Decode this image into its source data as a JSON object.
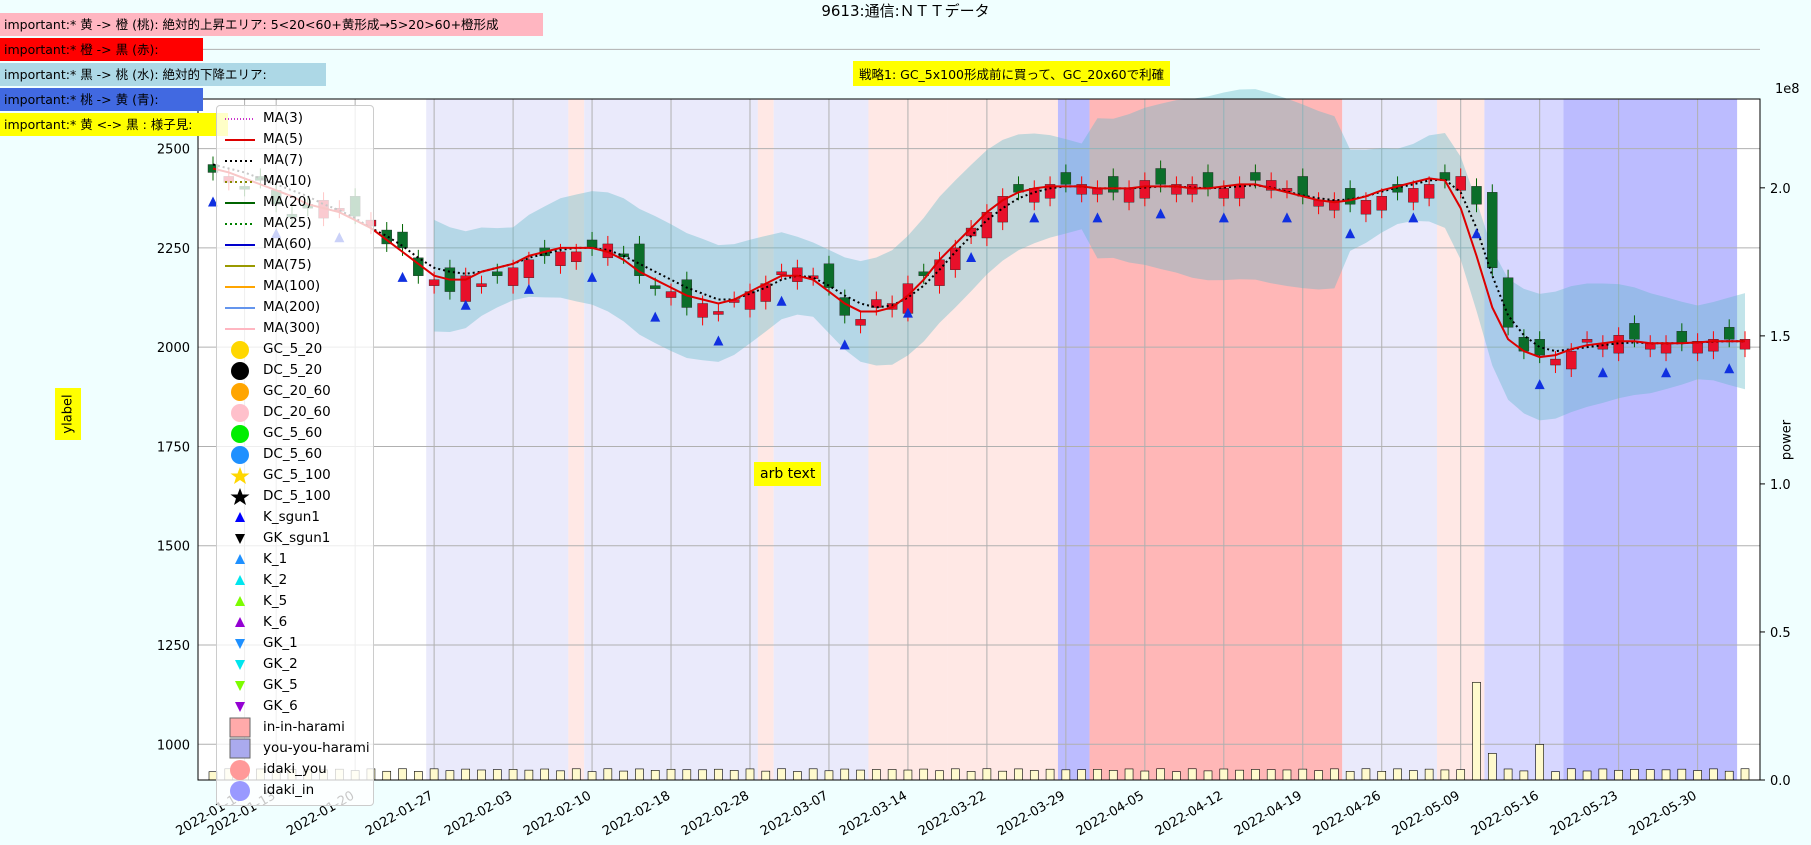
{
  "header": {
    "title": "9613:通信:ＮＴＴデータ",
    "strategy": "戦略1: GC_5x100形成前に買って、GC_20x60で利確",
    "arb_text": "arb text"
  },
  "notes": [
    {
      "text": "important:* 黄 -> 橙 (桃): 絶対的上昇エリア: 5<20<60+黄形成→5>20>60+橙形成",
      "color": "#ffb6c1"
    },
    {
      "text": "important:* 橙 -> 黒 (赤):",
      "color": "#ff0000"
    },
    {
      "text": "important:* 黒 -> 桃 (水): 絶対的下降エリア:",
      "color": "#add8e6"
    },
    {
      "text": "important:* 桃 -> 黄 (青):",
      "color": "#4169e1"
    },
    {
      "text": "important:* 黄 <-> 黒 : 様子見:",
      "color": "#ffff00"
    }
  ],
  "chart_data": {
    "type": "line",
    "title": "9613:通信:ＮＴＴデータ",
    "ylabel": "ylabel",
    "ylabel_right": "power",
    "right_axis_scale_label": "1e8",
    "ylim": [
      910,
      2625
    ],
    "ylim_right": [
      0,
      2.3
    ],
    "grid": true,
    "legend_placement": "upper left",
    "yticks": [
      1000,
      1250,
      1500,
      1750,
      2000,
      2250,
      2500,
      2750
    ],
    "yticks_right": [
      "0.0",
      "0.5",
      "1.0",
      "1.5",
      "2.0"
    ],
    "x_tick_labels": [
      "2022-01-13",
      "2022-01-13",
      "2022-01-20",
      "2022-01-27",
      "2022-02-03",
      "2022-02-10",
      "2022-02-18",
      "2022-02-28",
      "2022-03-07",
      "2022-03-14",
      "2022-03-22",
      "2022-03-29",
      "2022-04-05",
      "2022-04-12",
      "2022-04-19",
      "2022-04-26",
      "2022-05-09",
      "2022-05-16",
      "2022-05-23",
      "2022-05-30"
    ],
    "x_tick_positions": [
      2,
      4,
      9,
      14,
      19,
      24,
      29,
      34,
      39,
      44,
      49,
      54,
      59,
      64,
      69,
      74,
      79,
      84,
      89,
      94
    ],
    "n_points": 98,
    "close": [
      2440,
      2430,
      2400,
      2420,
      2360,
      2330,
      2350,
      2370,
      2350,
      2330,
      2320,
      2260,
      2250,
      2180,
      2170,
      2140,
      2180,
      2160,
      2180,
      2200,
      2220,
      2230,
      2240,
      2240,
      2250,
      2260,
      2230,
      2180,
      2150,
      2140,
      2100,
      2110,
      2090,
      2120,
      2140,
      2160,
      2190,
      2200,
      2180,
      2150,
      2080,
      2070,
      2120,
      2110,
      2160,
      2180,
      2220,
      2250,
      2300,
      2340,
      2380,
      2390,
      2400,
      2410,
      2410,
      2410,
      2400,
      2390,
      2400,
      2420,
      2410,
      2410,
      2410,
      2400,
      2400,
      2410,
      2420,
      2420,
      2400,
      2380,
      2370,
      2370,
      2360,
      2370,
      2380,
      2390,
      2400,
      2410,
      2420,
      2430,
      2360,
      2200,
      2050,
      1990,
      1980,
      1970,
      1990,
      2020,
      2010,
      2030,
      2020,
      2010,
      2010,
      2010,
      2015,
      2020,
      2020,
      2020
    ],
    "ma5": [
      2450,
      2440,
      2425,
      2410,
      2395,
      2380,
      2360,
      2350,
      2340,
      2320,
      2300,
      2270,
      2240,
      2210,
      2180,
      2170,
      2170,
      2190,
      2200,
      2210,
      2230,
      2240,
      2250,
      2250,
      2250,
      2240,
      2220,
      2190,
      2170,
      2150,
      2130,
      2120,
      2110,
      2120,
      2140,
      2160,
      2180,
      2180,
      2170,
      2140,
      2110,
      2090,
      2090,
      2100,
      2130,
      2170,
      2220,
      2260,
      2300,
      2340,
      2370,
      2390,
      2400,
      2405,
      2405,
      2405,
      2400,
      2400,
      2400,
      2405,
      2405,
      2405,
      2400,
      2400,
      2405,
      2410,
      2410,
      2400,
      2390,
      2380,
      2370,
      2365,
      2370,
      2380,
      2395,
      2405,
      2415,
      2425,
      2420,
      2350,
      2230,
      2100,
      2020,
      1990,
      1975,
      1980,
      1995,
      2005,
      2010,
      2015,
      2015,
      2010,
      2010,
      2010,
      2012,
      2015,
      2015,
      2015
    ],
    "ma7": [
      2460,
      2450,
      2440,
      2425,
      2410,
      2395,
      2380,
      2360,
      2345,
      2325,
      2300,
      2280,
      2255,
      2225,
      2200,
      2190,
      2185,
      2190,
      2200,
      2210,
      2225,
      2235,
      2245,
      2250,
      2250,
      2245,
      2230,
      2210,
      2190,
      2170,
      2150,
      2135,
      2120,
      2120,
      2135,
      2150,
      2170,
      2180,
      2175,
      2155,
      2130,
      2110,
      2100,
      2105,
      2125,
      2155,
      2195,
      2240,
      2280,
      2320,
      2350,
      2375,
      2390,
      2400,
      2405,
      2405,
      2400,
      2400,
      2400,
      2402,
      2405,
      2405,
      2402,
      2400,
      2402,
      2405,
      2408,
      2402,
      2392,
      2382,
      2375,
      2370,
      2372,
      2380,
      2392,
      2402,
      2410,
      2420,
      2422,
      2390,
      2300,
      2180,
      2080,
      2030,
      2000,
      1990,
      1995,
      2000,
      2005,
      2010,
      2012,
      2010,
      2010,
      2010,
      2012,
      2014,
      2015,
      2015
    ],
    "bands": [
      {
        "start": 13.5,
        "end": 22.5,
        "color": "#e6e6fa"
      },
      {
        "start": 22.5,
        "end": 23.5,
        "color": "#ffe4e1"
      },
      {
        "start": 23.5,
        "end": 34.5,
        "color": "#e6e6fa"
      },
      {
        "start": 34.5,
        "end": 35.5,
        "color": "#ffe4e1"
      },
      {
        "start": 35.5,
        "end": 41.5,
        "color": "#e6e6fa"
      },
      {
        "start": 41.5,
        "end": 46.5,
        "color": "#ffe4e1"
      },
      {
        "start": 46.5,
        "end": 53.5,
        "color": "#ffe4e1"
      },
      {
        "start": 53.5,
        "end": 55.5,
        "color": "#b0b0ff"
      },
      {
        "start": 55.5,
        "end": 71.5,
        "color": "#ffaaaa"
      },
      {
        "start": 71.5,
        "end": 77.5,
        "color": "#e6e6fa"
      },
      {
        "start": 77.5,
        "end": 80.5,
        "color": "#ffe4e1"
      },
      {
        "start": 80.5,
        "end": 85.5,
        "color": "#d0d0ff"
      },
      {
        "start": 85.5,
        "end": 96.5,
        "color": "#b0b0ff"
      }
    ],
    "legend": [
      "MA(3)",
      "MA(5)",
      "MA(7)",
      "MA(10)",
      "MA(20)",
      "MA(25)",
      "MA(60)",
      "MA(75)",
      "MA(100)",
      "MA(200)",
      "MA(300)",
      "GC_5_20",
      "DC_5_20",
      "GC_20_60",
      "DC_20_60",
      "GC_5_60",
      "DC_5_60",
      "GC_5_100",
      "DC_5_100",
      "K_sgun1",
      "GK_sgun1",
      "K_1",
      "K_2",
      "K_5",
      "K_6",
      "GK_1",
      "GK_2",
      "GK_5",
      "GK_6",
      "in-in-harami",
      "you-you-harami",
      "idaki_you",
      "idaki_in"
    ]
  }
}
